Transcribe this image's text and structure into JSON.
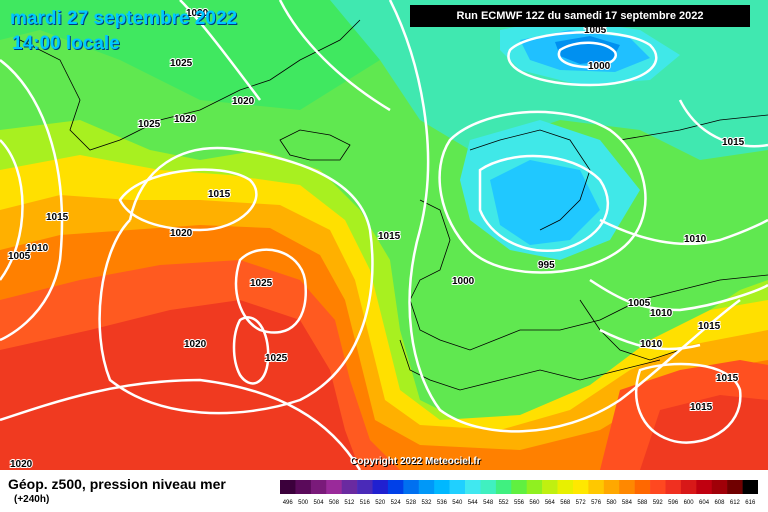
{
  "header": {
    "date": "mardi 27 septembre 2022",
    "time": "14:00 locale",
    "run": "Run ECMWF 12Z du samedi 17 septembre 2022"
  },
  "footer": {
    "title": "Géop. z500, pression niveau mer",
    "lead": "(+240h)",
    "copyright": "Copyright 2022 Meteociel.fr"
  },
  "legend": {
    "values": [
      "496",
      "500",
      "504",
      "508",
      "512",
      "516",
      "520",
      "524",
      "528",
      "532",
      "536",
      "540",
      "544",
      "548",
      "552",
      "556",
      "560",
      "564",
      "568",
      "572",
      "576",
      "580",
      "584",
      "588",
      "592",
      "596",
      "600",
      "604",
      "608",
      "612",
      "616"
    ],
    "colors": [
      "#3b003b",
      "#5a0a5a",
      "#7a1a7a",
      "#9a2a9a",
      "#6a2aa0",
      "#4a2ab8",
      "#2020d0",
      "#0040e8",
      "#0070f0",
      "#0098f8",
      "#00b8ff",
      "#20d0ff",
      "#40e8f0",
      "#40f0c0",
      "#40f080",
      "#60f040",
      "#90f020",
      "#c0f010",
      "#e8f000",
      "#ffe800",
      "#ffc800",
      "#ffa800",
      "#ff8800",
      "#ff6800",
      "#ff4820",
      "#f03020",
      "#d81818",
      "#c00010",
      "#a00008",
      "#700000",
      "#000000"
    ]
  },
  "isobars": {
    "labels": [
      "1020",
      "1025",
      "1020",
      "1025",
      "1020",
      "1015",
      "1015",
      "1010",
      "1005",
      "1020",
      "1025",
      "1020",
      "1025",
      "1020",
      "1015",
      "1000",
      "995",
      "1005",
      "1000",
      "1010",
      "1015",
      "1005",
      "1010",
      "1015",
      "1010",
      "1015",
      "1015",
      "1020"
    ]
  }
}
